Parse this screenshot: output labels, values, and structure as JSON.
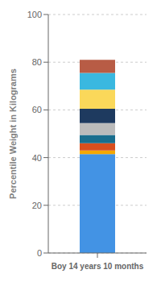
{
  "chart_data": {
    "type": "bar",
    "stacked": true,
    "categories": [
      "Boy 14 years 10 months"
    ],
    "series": [
      {
        "color": "#4393E4",
        "values": [
          41.5
        ]
      },
      {
        "color": "#F5A800",
        "values": [
          1.5
        ]
      },
      {
        "color": "#D94F1E",
        "values": [
          3.0
        ]
      },
      {
        "color": "#1A6E8E",
        "values": [
          3.5
        ]
      },
      {
        "color": "#BBBBBB",
        "values": [
          5.0
        ]
      },
      {
        "color": "#1E3A5F",
        "values": [
          6.0
        ]
      },
      {
        "color": "#FAD85A",
        "values": [
          8.0
        ]
      },
      {
        "color": "#3AB8E0",
        "values": [
          7.0
        ]
      },
      {
        "color": "#B85C45",
        "values": [
          5.5
        ]
      }
    ],
    "ylabel": "Percentile Weight in Kilograms",
    "ylim": [
      0,
      100
    ],
    "yticks": [
      0,
      20,
      40,
      60,
      80,
      100
    ],
    "grid": true
  }
}
